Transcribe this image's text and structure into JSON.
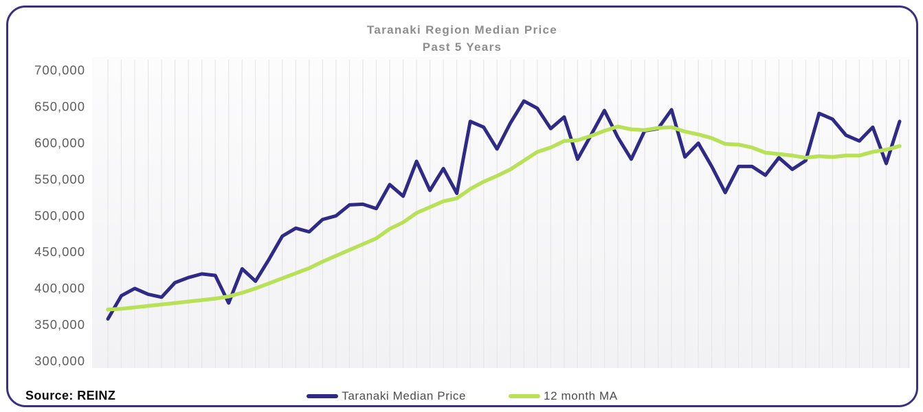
{
  "title": "Taranaki Region Median Price",
  "subtitle": "Past 5 Years",
  "source_label": "Source: REINZ",
  "colors": {
    "card_border": "#3a3082",
    "price_line": "#302a87",
    "ma_line": "#b9e158",
    "gridline": "#e6e6e9",
    "plot_bg_top": "#fcfcfd",
    "plot_bg_bottom": "#f2f2f4",
    "tick_label": "#5d5d5d",
    "title_text": "#8d8d8d"
  },
  "legend": {
    "items": [
      {
        "label": "Taranaki Median Price",
        "color": "#302a87"
      },
      {
        "label": "12 month MA",
        "color": "#b9e158"
      }
    ]
  },
  "chart_data": {
    "type": "line",
    "title": "Taranaki Region Median Price",
    "subtitle": "Past 5 Years",
    "xlabel": "",
    "ylabel": "",
    "x_axis_labels_visible": false,
    "x_months": 60,
    "ylim": [
      300000,
      700000
    ],
    "grid": "vertical-only",
    "legend_position": "bottom-center",
    "y_ticks": [
      {
        "label": "700,000",
        "value": 700000
      },
      {
        "label": "650,000",
        "value": 650000
      },
      {
        "label": "600,000",
        "value": 600000
      },
      {
        "label": "550,000",
        "value": 550000
      },
      {
        "label": "500,000",
        "value": 500000
      },
      {
        "label": "450,000",
        "value": 450000
      },
      {
        "label": "400,000",
        "value": 400000
      },
      {
        "label": "350,000",
        "value": 350000
      },
      {
        "label": "300,000",
        "value": 300000
      }
    ],
    "series": [
      {
        "name": "Taranaki Median Price",
        "color": "#302a87",
        "values": [
          358000,
          390000,
          400000,
          392000,
          388000,
          408000,
          415000,
          420000,
          418000,
          380000,
          427000,
          410000,
          440000,
          472000,
          483000,
          478000,
          495000,
          500000,
          515000,
          516000,
          510000,
          543000,
          527000,
          575000,
          535000,
          565000,
          531000,
          630000,
          622000,
          592000,
          628000,
          658000,
          648000,
          620000,
          636000,
          578000,
          611000,
          645000,
          608000,
          578000,
          617000,
          620000,
          646000,
          581000,
          600000,
          568000,
          532000,
          568000,
          568000,
          556000,
          580000,
          564000,
          576000,
          641000,
          633000,
          611000,
          603000,
          622000,
          572000,
          630000
        ]
      },
      {
        "name": "12 month MA",
        "color": "#b9e158",
        "values": [
          371000,
          372000,
          374000,
          376000,
          378000,
          380000,
          382000,
          384000,
          386000,
          389000,
          394000,
          400000,
          407000,
          414000,
          421000,
          428000,
          437000,
          445000,
          453000,
          461000,
          469000,
          482000,
          491000,
          504000,
          512000,
          520000,
          524000,
          537000,
          547000,
          555000,
          564000,
          576000,
          588000,
          594000,
          603000,
          604000,
          610000,
          617000,
          623000,
          619000,
          618000,
          621000,
          622000,
          616000,
          612000,
          607000,
          599000,
          598000,
          594000,
          587000,
          585000,
          583000,
          580000,
          582000,
          581000,
          583000,
          583000,
          588000,
          591000,
          596000
        ]
      }
    ]
  }
}
